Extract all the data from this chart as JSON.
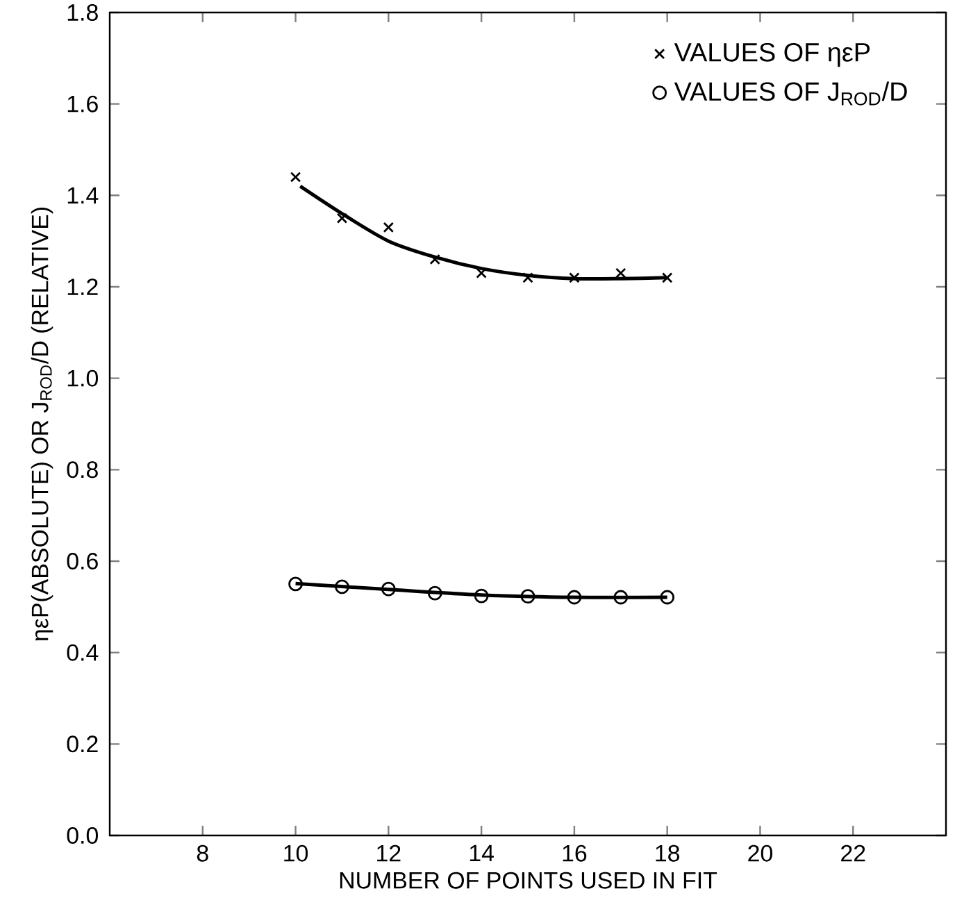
{
  "chart_data": {
    "type": "scatter",
    "xlabel": "NUMBER OF POINTS USED IN FIT",
    "ylabel": "ηεP(ABSOLUTE) OR J$_{ROD}$/D (RELATIVE)",
    "xlim": [
      6,
      24
    ],
    "ylim": [
      0,
      1.8
    ],
    "xticks": [
      8,
      10,
      12,
      14,
      16,
      18,
      20,
      22
    ],
    "yticks": [
      {
        "value": 0,
        "label": "0.0"
      },
      {
        "value": 0.2,
        "label": "0.2"
      },
      {
        "value": 0.4,
        "label": "0.4"
      },
      {
        "value": 0.6,
        "label": "0.6"
      },
      {
        "value": 0.8,
        "label": "0.8"
      },
      {
        "value": 1.0,
        "label": "1.0"
      },
      {
        "value": 1.2,
        "label": "1.2"
      },
      {
        "value": 1.4,
        "label": "1.4"
      },
      {
        "value": 1.6,
        "label": "1.6"
      },
      {
        "value": 1.8,
        "label": "1.8"
      }
    ],
    "grid": false,
    "legend": "top right",
    "series": [
      {
        "name": "VALUES OF ηεP",
        "marker": "cross",
        "color": "#000000",
        "x": [
          10,
          11,
          12,
          13,
          14,
          15,
          16,
          17,
          18
        ],
        "values": [
          1.44,
          1.35,
          1.33,
          1.26,
          1.23,
          1.22,
          1.22,
          1.23,
          1.22
        ]
      },
      {
        "name": "VALUES OF J$_{ROD}$/D",
        "marker": "circle",
        "color": "#000000",
        "x": [
          10,
          11,
          12,
          13,
          14,
          15,
          16,
          17,
          18
        ],
        "values": [
          0.55,
          0.544,
          0.539,
          0.53,
          0.524,
          0.523,
          0.521,
          0.521,
          0.521
        ]
      },
      {
        "type": "line",
        "color": "#000000",
        "x": [
          10.1,
          11,
          12,
          13,
          14,
          15,
          16,
          17,
          18
        ],
        "values": [
          1.42,
          1.36,
          1.3,
          1.265,
          1.24,
          1.225,
          1.218,
          1.218,
          1.22
        ]
      },
      {
        "type": "line",
        "color": "#000000",
        "x": [
          10,
          12,
          14,
          16,
          18
        ],
        "values": [
          0.551,
          0.538,
          0.526,
          0.521,
          0.521
        ]
      }
    ]
  }
}
